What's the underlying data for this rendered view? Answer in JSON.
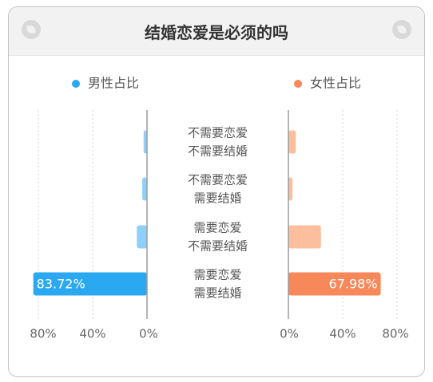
{
  "header": {
    "title": "结婚恋爱是必须的吗"
  },
  "colors": {
    "male": "#2aa9f2",
    "male_light": "#8fd0fa",
    "female": "#f6885a",
    "female_light": "#fcbf9d",
    "grid": "#d6d6d6",
    "axis": "#9a9a9a",
    "text": "#555555"
  },
  "chart_data": {
    "type": "bar",
    "legend": [
      "男性占比",
      "女性占比"
    ],
    "categories": [
      [
        "不需要恋爱",
        "不需要结婚"
      ],
      [
        "不需要恋爱",
        "需要结婚"
      ],
      [
        "需要恋爱",
        "不需要结婚"
      ],
      [
        "需要恋爱",
        "需要结婚"
      ]
    ],
    "series": [
      {
        "name": "男性占比",
        "values": [
          2.5,
          3.5,
          7.5,
          83.72
        ],
        "label": [
          null,
          null,
          null,
          "83.72%"
        ]
      },
      {
        "name": "女性占比",
        "values": [
          5.5,
          3,
          24,
          67.98
        ],
        "label": [
          null,
          null,
          null,
          "67.98%"
        ]
      }
    ],
    "xlim": [
      0,
      80
    ],
    "ticks_male": [
      "80%",
      "40%",
      "0%"
    ],
    "ticks_female": [
      "0%",
      "40%",
      "80%"
    ],
    "grid": true,
    "legend_placement": "top"
  }
}
